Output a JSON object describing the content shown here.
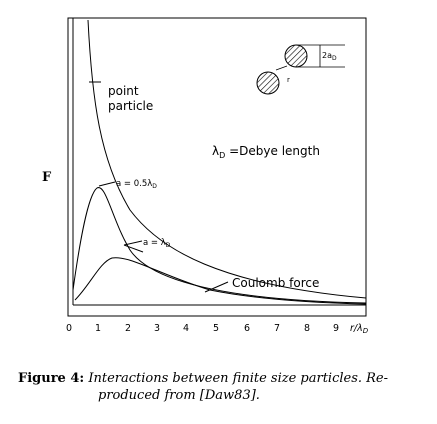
{
  "figure": {
    "y_axis_label": "F",
    "point_particle_line1": "point",
    "point_particle_line2": "particle",
    "legend_lambda": "λ",
    "legend_lambda_sub": "D",
    "legend_rest": " =Debye length",
    "curve_05_label": "a = 0.5λ",
    "curve_05_sub": "D",
    "curve_1_label": "a = λ",
    "curve_1_sub": "D",
    "coulomb_label": "Coulomb force",
    "inset_label": "2a",
    "inset_sub": "D",
    "inset_small": "r",
    "x_ticks": [
      "0",
      "1",
      "2",
      "3",
      "4",
      "5",
      "6",
      "7",
      "8",
      "9"
    ],
    "x_unit": "r/λ",
    "x_unit_sub": "D"
  },
  "caption": {
    "number": "Figure 4:",
    "text_line1": "Interactions between finite size particles. Re-",
    "text_line2": "produced from [Daw83]."
  }
}
